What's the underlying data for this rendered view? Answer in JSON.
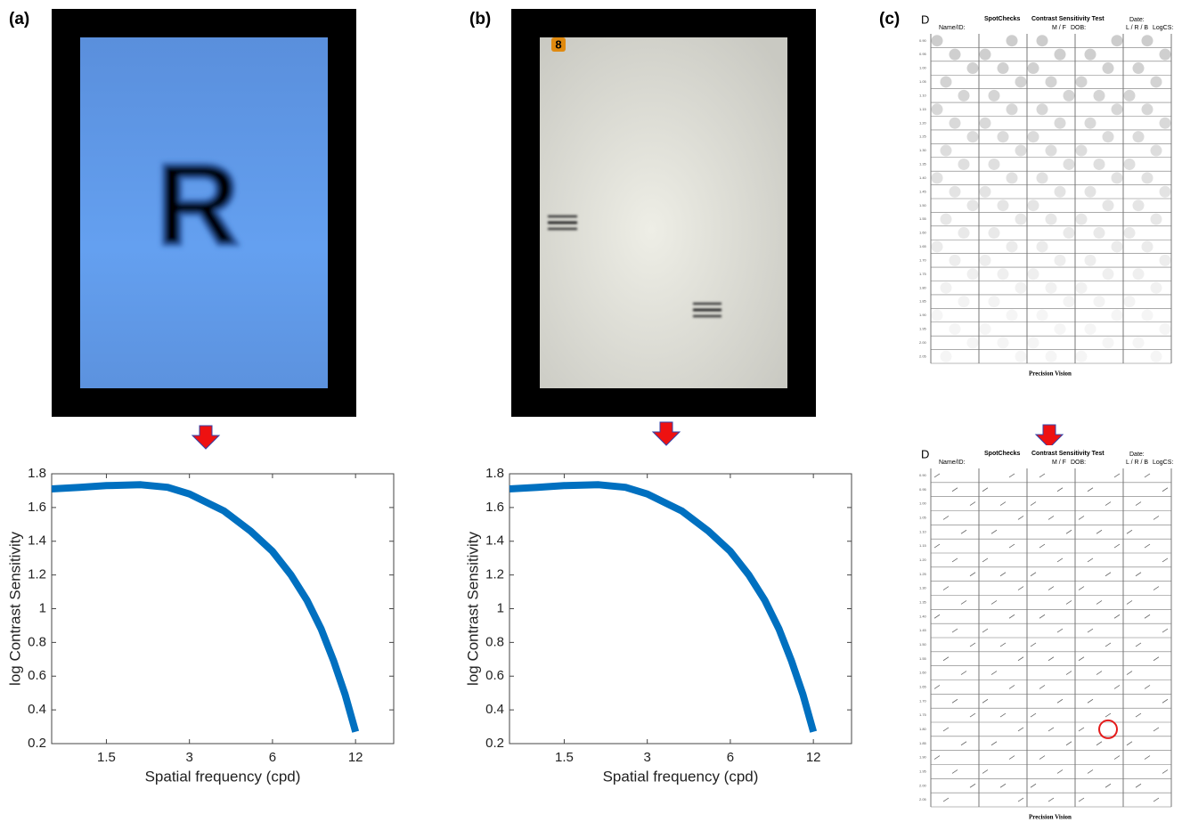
{
  "panel_labels": [
    "(a)",
    "(b)",
    "(c)"
  ],
  "panel_b_badge": "8",
  "stimulus_letter": "R",
  "chart_data": [
    {
      "type": "line",
      "xlabel": "Spatial frequency (cpd)",
      "ylabel": "log Contrast Sensitivity",
      "log_x": true,
      "color": "#0070c0",
      "x": [
        0.95,
        1.2,
        1.5,
        2,
        2.5,
        3,
        4,
        5,
        6,
        7,
        8,
        9,
        10,
        11,
        12
      ],
      "values": [
        1.71,
        1.72,
        1.73,
        1.735,
        1.72,
        1.68,
        1.58,
        1.46,
        1.34,
        1.2,
        1.05,
        0.88,
        0.69,
        0.49,
        0.27
      ],
      "xlim": [
        0.95,
        16.5
      ],
      "xticks": [
        1.5,
        3,
        6,
        12
      ],
      "ylim": [
        0.2,
        1.8
      ],
      "yticks": [
        0.2,
        0.4,
        0.6,
        0.8,
        1,
        1.2,
        1.4,
        1.6,
        1.8
      ]
    },
    {
      "type": "line",
      "xlabel": "Spatial frequency (cpd)",
      "ylabel": "log Contrast Sensitivity",
      "log_x": true,
      "color": "#0070c0",
      "x": [
        0.95,
        1.2,
        1.5,
        2,
        2.5,
        3,
        4,
        5,
        6,
        7,
        8,
        9,
        10,
        11,
        12
      ],
      "values": [
        1.71,
        1.72,
        1.73,
        1.735,
        1.72,
        1.68,
        1.58,
        1.46,
        1.34,
        1.2,
        1.05,
        0.88,
        0.69,
        0.49,
        0.27
      ],
      "xlim": [
        0.95,
        16.5
      ],
      "xticks": [
        1.5,
        3,
        6,
        12
      ],
      "ylim": [
        0.2,
        1.8
      ],
      "yticks": [
        0.2,
        0.4,
        0.6,
        0.8,
        1,
        1.2,
        1.4,
        1.6,
        1.8
      ]
    }
  ],
  "scorecards": [
    {
      "letter": "D",
      "brand": "SpotChecks",
      "title": "Contrast Sensitivity Test",
      "date": "Date:",
      "name": "Name/ID:",
      "sex": "M / F",
      "dob": "DOB:",
      "eye": "L / R / B",
      "logcs": "LogCS:",
      "footer": "Precision Vision",
      "row_labels": [
        "0.90",
        "0.95",
        "1.00",
        "1.05",
        "1.10",
        "1.15",
        "1.20",
        "1.25",
        "1.30",
        "1.35",
        "1.40",
        "1.45",
        "1.50",
        "1.55",
        "1.60",
        "1.65",
        "1.70",
        "1.75",
        "1.80",
        "1.85",
        "1.90",
        "1.95",
        "2.00",
        "2.05"
      ]
    },
    {
      "letter": "D",
      "brand": "SpotChecks",
      "title": "Contrast Sensitivity Test",
      "date": "Date:",
      "name": "Name/ID:",
      "sex": "M / F",
      "dob": "DOB:",
      "eye": "L / R / B",
      "logcs": "LogCS:",
      "footer": "Precision Vision",
      "row_labels": [
        "0.90",
        "0.95",
        "1.00",
        "1.05",
        "1.10",
        "1.15",
        "1.20",
        "1.25",
        "1.30",
        "1.35",
        "1.40",
        "1.45",
        "1.50",
        "1.55",
        "1.60",
        "1.65",
        "1.70",
        "1.75",
        "1.80",
        "1.85",
        "1.90",
        "1.95",
        "2.00",
        "2.05"
      ]
    }
  ]
}
